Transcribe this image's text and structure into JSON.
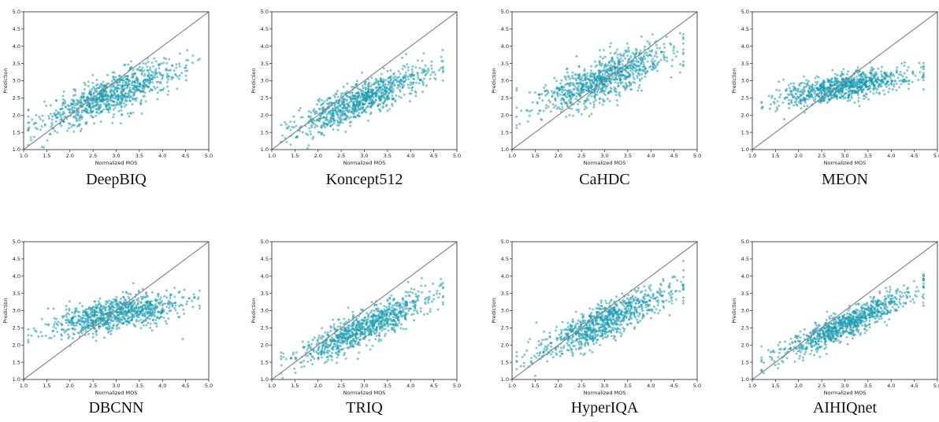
{
  "colors": {
    "points": "#1a9bb0",
    "diagonal": "#8a8a8a",
    "axes": "#222222",
    "background": "#ffffff"
  },
  "panels": [
    {
      "caption": "DeepBIQ"
    },
    {
      "caption": "Koncept512"
    },
    {
      "caption": "CaHDC"
    },
    {
      "caption": "MEON"
    },
    {
      "caption": "DBCNN"
    },
    {
      "caption": "TRIQ"
    },
    {
      "caption": "HyperIQA"
    },
    {
      "caption": "AIHIQnet"
    }
  ],
  "chart_data": [
    {
      "type": "scatter",
      "model": "DeepBIQ",
      "xlabel": "Normalized MOS",
      "ylabel": "Prediction",
      "xlim": [
        1.0,
        5.0
      ],
      "ylim": [
        1.0,
        5.0
      ],
      "ticks": [
        "1.0",
        "1.5",
        "2.0",
        "2.5",
        "3.0",
        "3.5",
        "4.0",
        "4.5",
        "5.0"
      ],
      "reference_line": "y = x",
      "point_count": 900,
      "trend": {
        "slope": 0.5,
        "intercept": 1.15,
        "spread": 0.28,
        "x_range": [
          1.1,
          4.8
        ],
        "x_mean": 2.9,
        "x_sd": 0.75
      }
    },
    {
      "type": "scatter",
      "model": "Koncept512",
      "xlabel": "Normalized MOS",
      "ylabel": "Prediction",
      "xlim": [
        1.0,
        5.0
      ],
      "ylim": [
        1.0,
        5.0
      ],
      "ticks": [
        "1.0",
        "1.5",
        "2.0",
        "2.5",
        "3.0",
        "3.5",
        "4.0",
        "4.5",
        "5.0"
      ],
      "reference_line": "y = x",
      "point_count": 900,
      "trend": {
        "slope": 0.56,
        "intercept": 0.78,
        "spread": 0.25,
        "x_range": [
          1.2,
          4.7
        ],
        "x_mean": 2.95,
        "x_sd": 0.72
      }
    },
    {
      "type": "scatter",
      "model": "CaHDC",
      "xlabel": "Normalized MOS",
      "ylabel": "Prediction",
      "xlim": [
        1.0,
        5.0
      ],
      "ylim": [
        1.0,
        5.0
      ],
      "ticks": [
        "1.0",
        "1.5",
        "2.0",
        "2.5",
        "3.0",
        "3.5",
        "4.0",
        "4.5",
        "5.0"
      ],
      "reference_line": "y = x",
      "point_count": 900,
      "trend": {
        "slope": 0.48,
        "intercept": 1.62,
        "spread": 0.32,
        "x_range": [
          1.1,
          4.7
        ],
        "x_mean": 2.95,
        "x_sd": 0.75
      }
    },
    {
      "type": "scatter",
      "model": "MEON",
      "xlabel": "Normalized MOS",
      "ylabel": "Prediction",
      "xlim": [
        1.0,
        5.0
      ],
      "ylim": [
        1.0,
        5.0
      ],
      "ticks": [
        "1.0",
        "1.5",
        "2.0",
        "2.5",
        "3.0",
        "3.5",
        "4.0",
        "4.5",
        "5.0"
      ],
      "reference_line": "y = x",
      "point_count": 900,
      "trend": {
        "slope": 0.24,
        "intercept": 2.1,
        "spread": 0.2,
        "x_range": [
          1.2,
          4.7
        ],
        "x_mean": 3.0,
        "x_sd": 0.72
      }
    },
    {
      "type": "scatter",
      "model": "DBCNN",
      "xlabel": "Normalized MOS",
      "ylabel": "Prediction",
      "xlim": [
        1.0,
        5.0
      ],
      "ylim": [
        1.0,
        5.0
      ],
      "ticks": [
        "1.0",
        "1.5",
        "2.0",
        "2.5",
        "3.0",
        "3.5",
        "4.0",
        "4.5",
        "5.0"
      ],
      "reference_line": "y = x",
      "point_count": 900,
      "trend": {
        "slope": 0.24,
        "intercept": 2.18,
        "spread": 0.24,
        "x_range": [
          1.1,
          4.8
        ],
        "x_mean": 3.0,
        "x_sd": 0.75
      }
    },
    {
      "type": "scatter",
      "model": "TRIQ",
      "xlabel": "Normalized MOS",
      "ylabel": "Prediction",
      "xlim": [
        1.0,
        5.0
      ],
      "ylim": [
        1.0,
        5.0
      ],
      "ticks": [
        "1.0",
        "1.5",
        "2.0",
        "2.5",
        "3.0",
        "3.5",
        "4.0",
        "4.5",
        "5.0"
      ],
      "reference_line": "y = x",
      "point_count": 900,
      "trend": {
        "slope": 0.6,
        "intercept": 0.72,
        "spread": 0.24,
        "x_range": [
          1.2,
          4.7
        ],
        "x_mean": 3.0,
        "x_sd": 0.72
      }
    },
    {
      "type": "scatter",
      "model": "HyperIQA",
      "xlabel": "Normalized MOS",
      "ylabel": "Prediction",
      "xlim": [
        1.0,
        5.0
      ],
      "ylim": [
        1.0,
        5.0
      ],
      "ticks": [
        "1.0",
        "1.5",
        "2.0",
        "2.5",
        "3.0",
        "3.5",
        "4.0",
        "4.5",
        "5.0"
      ],
      "reference_line": "y = x",
      "point_count": 900,
      "trend": {
        "slope": 0.62,
        "intercept": 0.82,
        "spread": 0.26,
        "x_range": [
          1.1,
          4.7
        ],
        "x_mean": 3.0,
        "x_sd": 0.75
      }
    },
    {
      "type": "scatter",
      "model": "AIHIQnet",
      "xlabel": "Normalized MOS",
      "ylabel": "Prediction",
      "xlim": [
        1.0,
        5.0
      ],
      "ylim": [
        1.0,
        5.0
      ],
      "ticks": [
        "1.0",
        "1.5",
        "2.0",
        "2.5",
        "3.0",
        "3.5",
        "4.0",
        "4.5",
        "5.0"
      ],
      "reference_line": "y = x",
      "point_count": 900,
      "trend": {
        "slope": 0.62,
        "intercept": 0.72,
        "spread": 0.2,
        "x_range": [
          1.2,
          4.7
        ],
        "x_mean": 3.0,
        "x_sd": 0.72
      }
    }
  ]
}
